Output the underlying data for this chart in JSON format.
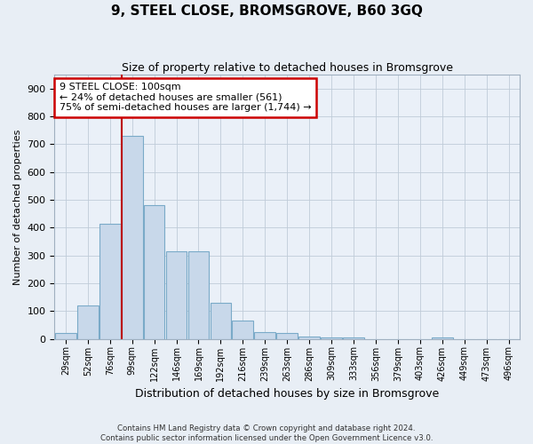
{
  "title": "9, STEEL CLOSE, BROMSGROVE, B60 3GQ",
  "subtitle": "Size of property relative to detached houses in Bromsgrove",
  "xlabel": "Distribution of detached houses by size in Bromsgrove",
  "ylabel": "Number of detached properties",
  "footer1": "Contains HM Land Registry data © Crown copyright and database right 2024.",
  "footer2": "Contains public sector information licensed under the Open Government Licence v3.0.",
  "categories": [
    "29sqm",
    "52sqm",
    "76sqm",
    "99sqm",
    "122sqm",
    "146sqm",
    "169sqm",
    "192sqm",
    "216sqm",
    "239sqm",
    "263sqm",
    "286sqm",
    "309sqm",
    "333sqm",
    "356sqm",
    "379sqm",
    "403sqm",
    "426sqm",
    "449sqm",
    "473sqm",
    "496sqm"
  ],
  "values": [
    20,
    120,
    415,
    730,
    480,
    315,
    315,
    130,
    65,
    25,
    20,
    10,
    5,
    5,
    0,
    0,
    0,
    5,
    0,
    0,
    0
  ],
  "bar_color": "#c8d8ea",
  "bar_edge_color": "#7aaac8",
  "vline_x_index": 3,
  "vline_color": "#bb0000",
  "ann_line1": "9 STEEL CLOSE: 100sqm",
  "ann_line2": "← 24% of detached houses are smaller (561)",
  "ann_line3": "75% of semi-detached houses are larger (1,744) →",
  "annotation_box_color": "#cc0000",
  "ylim": [
    0,
    950
  ],
  "yticks": [
    0,
    100,
    200,
    300,
    400,
    500,
    600,
    700,
    800,
    900
  ],
  "grid_color": "#c0ccd8",
  "background_color": "#e8eef5",
  "plot_bg_color": "#eaf0f8"
}
